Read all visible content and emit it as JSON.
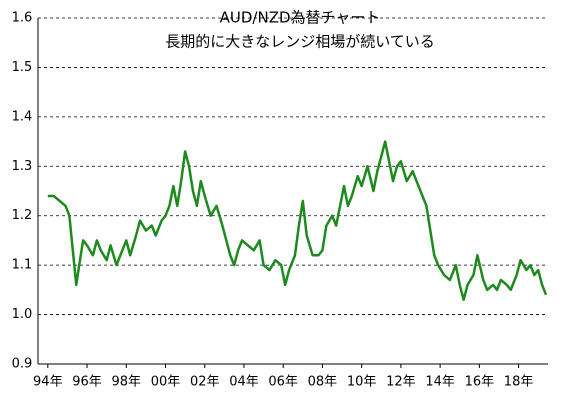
{
  "chart_data": {
    "type": "line",
    "title": "AUD/NZD為替チャート",
    "subtitle": "長期的に大きなレンジ相場が続いている",
    "xlim": [
      1993.5,
      2019.5
    ],
    "xticks": [
      {
        "value": 1994,
        "label": "94年"
      },
      {
        "value": 1996,
        "label": "96年"
      },
      {
        "value": 1998,
        "label": "98年"
      },
      {
        "value": 2000,
        "label": "00年"
      },
      {
        "value": 2002,
        "label": "02年"
      },
      {
        "value": 2004,
        "label": "04年"
      },
      {
        "value": 2006,
        "label": "06年"
      },
      {
        "value": 2008,
        "label": "08年"
      },
      {
        "value": 2010,
        "label": "10年"
      },
      {
        "value": 2012,
        "label": "12年"
      },
      {
        "value": 2014,
        "label": "14年"
      },
      {
        "value": 2016,
        "label": "16年"
      },
      {
        "value": 2018,
        "label": "18年"
      }
    ],
    "ylim": [
      0.9,
      1.6
    ],
    "yticks": [
      0.9,
      {
        "value": 1,
        "label": "1.0"
      },
      1.1,
      1.2,
      1.3,
      1.4,
      1.5,
      1.6
    ],
    "grid": true,
    "x": [
      1994.0,
      1994.3,
      1994.6,
      1994.9,
      1995.1,
      1995.3,
      1995.45,
      1995.6,
      1995.8,
      1996.0,
      1996.3,
      1996.5,
      1996.7,
      1997.0,
      1997.2,
      1997.5,
      1997.8,
      1998.0,
      1998.2,
      1998.5,
      1998.7,
      1999.0,
      1999.3,
      1999.5,
      1999.8,
      2000.0,
      2000.2,
      2000.4,
      2000.6,
      2000.8,
      2001.0,
      2001.2,
      2001.4,
      2001.6,
      2001.8,
      2002.0,
      2002.3,
      2002.6,
      2002.9,
      2003.1,
      2003.3,
      2003.5,
      2003.7,
      2003.9,
      2004.2,
      2004.5,
      2004.8,
      2005.0,
      2005.3,
      2005.6,
      2005.9,
      2006.1,
      2006.3,
      2006.6,
      2006.8,
      2007.0,
      2007.2,
      2007.5,
      2007.8,
      2008.0,
      2008.2,
      2008.5,
      2008.7,
      2008.9,
      2009.1,
      2009.3,
      2009.5,
      2009.8,
      2010.0,
      2010.3,
      2010.6,
      2010.8,
      2011.0,
      2011.2,
      2011.4,
      2011.6,
      2011.8,
      2012.0,
      2012.3,
      2012.6,
      2012.9,
      2013.1,
      2013.3,
      2013.5,
      2013.7,
      2013.9,
      2014.2,
      2014.5,
      2014.8,
      2015.0,
      2015.2,
      2015.4,
      2015.7,
      2015.9,
      2016.2,
      2016.4,
      2016.7,
      2016.9,
      2017.1,
      2017.4,
      2017.6,
      2017.9,
      2018.1,
      2018.4,
      2018.6,
      2018.8,
      2019.0,
      2019.2,
      2019.4
    ],
    "series": [
      {
        "color": "#1e8a1e",
        "values": [
          1.24,
          1.24,
          1.23,
          1.22,
          1.2,
          1.12,
          1.06,
          1.1,
          1.15,
          1.14,
          1.12,
          1.15,
          1.13,
          1.11,
          1.14,
          1.1,
          1.13,
          1.15,
          1.12,
          1.16,
          1.19,
          1.17,
          1.18,
          1.16,
          1.19,
          1.2,
          1.22,
          1.26,
          1.22,
          1.27,
          1.33,
          1.3,
          1.25,
          1.22,
          1.27,
          1.24,
          1.2,
          1.22,
          1.18,
          1.15,
          1.12,
          1.1,
          1.13,
          1.15,
          1.14,
          1.13,
          1.15,
          1.1,
          1.09,
          1.11,
          1.1,
          1.06,
          1.09,
          1.12,
          1.18,
          1.23,
          1.16,
          1.12,
          1.12,
          1.13,
          1.18,
          1.2,
          1.18,
          1.22,
          1.26,
          1.22,
          1.24,
          1.28,
          1.26,
          1.3,
          1.25,
          1.29,
          1.32,
          1.35,
          1.31,
          1.27,
          1.3,
          1.31,
          1.27,
          1.29,
          1.26,
          1.24,
          1.22,
          1.17,
          1.12,
          1.1,
          1.08,
          1.07,
          1.1,
          1.06,
          1.03,
          1.06,
          1.08,
          1.12,
          1.07,
          1.05,
          1.06,
          1.05,
          1.07,
          1.06,
          1.05,
          1.08,
          1.11,
          1.09,
          1.1,
          1.08,
          1.09,
          1.06,
          1.04
        ]
      }
    ]
  }
}
